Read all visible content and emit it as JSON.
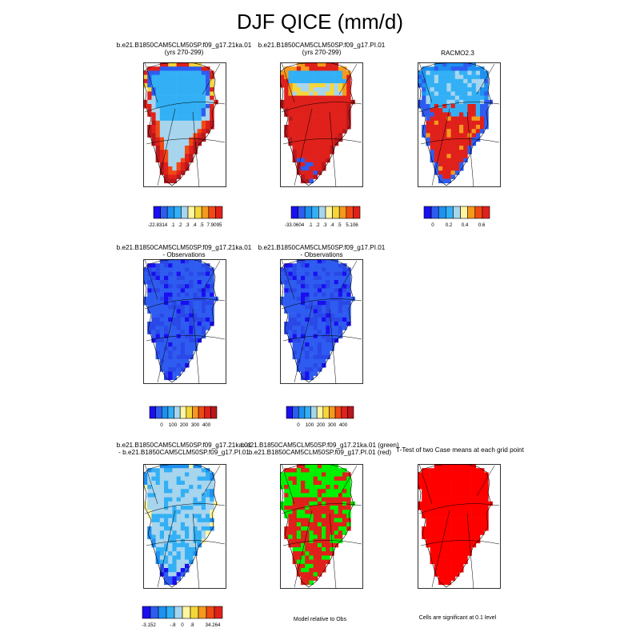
{
  "title": "DJF QICE (mm/d)",
  "palette": {
    "dark_blue": "#1a0ff0",
    "blue": "#2e5cf0",
    "mid_blue": "#1e90f0",
    "sky": "#33b0f5",
    "light_blue": "#a7d5ee",
    "pale_yellow": "#fff5a0",
    "yellow": "#f5d63a",
    "orange": "#f59a1e",
    "red_orange": "#f04a14",
    "red": "#e0201a",
    "dark_red": "#b8181c",
    "green": "#00f000",
    "sig_red": "#ff0000"
  },
  "panels": [
    {
      "title_lines": [
        "b.e21.B1850CAM5CLM50SP.f09_g17.21ka.01",
        "(yrs 270-299)"
      ],
      "style": "case1"
    },
    {
      "title_lines": [
        "b.e21.B1850CAM5CLM50SP.f09_g17.PI.01",
        "(yrs 270-299)"
      ],
      "style": "case2"
    },
    {
      "title_lines": [
        "RACMO2.3",
        ""
      ],
      "style": "obs"
    },
    {
      "title_lines": [
        "b.e21.B1850CAM5CLM50SP.f09_g17.21ka.01",
        "- Observations"
      ],
      "style": "bias"
    },
    {
      "title_lines": [
        "b.e21.B1850CAM5CLM50SP.f09_g17.PI.01",
        "- Observations"
      ],
      "style": "bias"
    },
    {
      "title_lines": [
        "b.e21.B1850CAM5CLM50SP.f09_g17.21ka.01",
        "- b.e21.B1850CAM5CLM50SP.f09_g17.PI.01"
      ],
      "style": "diff"
    },
    {
      "title_lines": [
        "b.e21.B1850CAM5CLM50SP.f09_g17.21ka.01 (green)",
        "b.e21.B1850CAM5CLM50SP.f09_g17.PI.01 (red)"
      ],
      "style": "closer"
    },
    {
      "title_lines": [
        "T-Test of two Case means at each grid point",
        ""
      ],
      "style": "sig"
    }
  ],
  "colorbars": [
    {
      "labels": [
        "-22.8314",
        ".1",
        ".2",
        ".3",
        ".4",
        ".5",
        "7.9095"
      ]
    },
    {
      "labels": [
        "-33.0604",
        ".1",
        ".2",
        ".3",
        ".4",
        ".5",
        "5.106"
      ]
    },
    {
      "labels": [
        "0",
        "0.2",
        "0.4",
        "0.6"
      ]
    },
    {
      "labels": [
        "0",
        "100",
        "200",
        "300",
        "400"
      ]
    },
    {
      "labels": [
        "0",
        "100",
        "200",
        "300",
        "400"
      ]
    },
    {
      "labels": [
        "-3.152",
        "-.8",
        "0",
        ".8",
        "34.264"
      ]
    }
  ],
  "notes": {
    "closer": "Model relative to Obs",
    "sig": "Cells are significant at 0.1 level"
  }
}
